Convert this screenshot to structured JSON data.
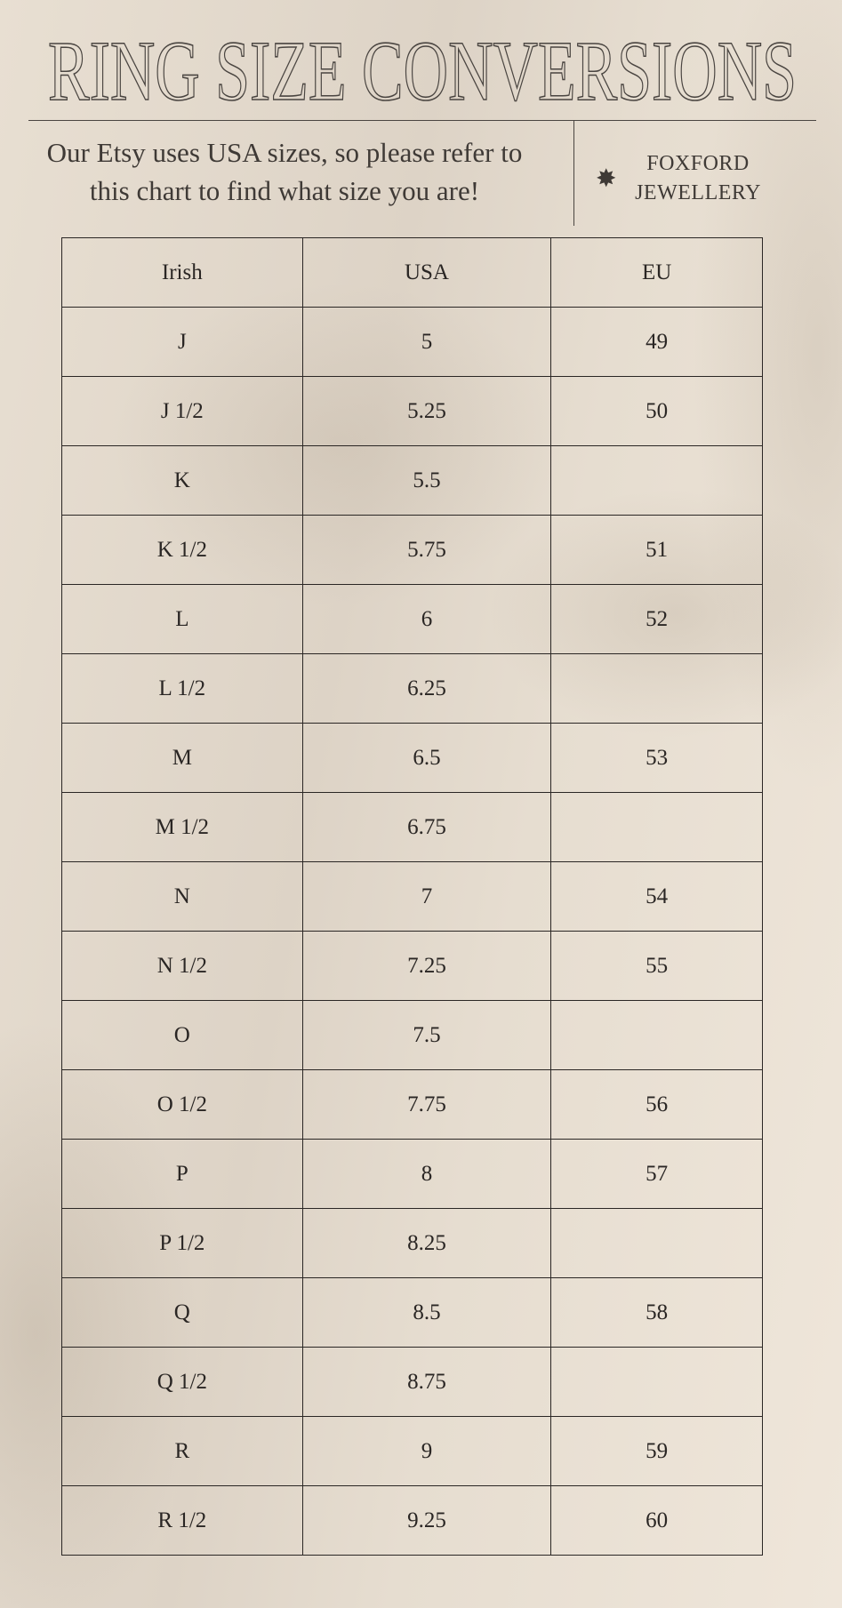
{
  "title": "RING SIZE CONVERSIONS",
  "subtitle": {
    "line1": "Our Etsy uses USA sizes, so please refer to",
    "line2": "this chart to find what size you are!"
  },
  "brand": {
    "line1": "FOXFORD",
    "line2": "JEWELLERY",
    "icon": "star-icon"
  },
  "table": {
    "headers": [
      "Irish",
      "USA",
      "EU"
    ],
    "rows": [
      [
        "J",
        "5",
        "49"
      ],
      [
        "J  1/2",
        "5.25",
        "50"
      ],
      [
        "K",
        "5.5",
        ""
      ],
      [
        "K 1/2",
        "5.75",
        "51"
      ],
      [
        "L",
        "6",
        "52"
      ],
      [
        "L 1/2",
        "6.25",
        ""
      ],
      [
        "M",
        "6.5",
        "53"
      ],
      [
        "M 1/2",
        "6.75",
        ""
      ],
      [
        "N",
        "7",
        "54"
      ],
      [
        "N 1/2",
        "7.25",
        "55"
      ],
      [
        "O",
        "7.5",
        ""
      ],
      [
        "O 1/2",
        "7.75",
        "56"
      ],
      [
        "P",
        "8",
        "57"
      ],
      [
        "P 1/2",
        "8.25",
        ""
      ],
      [
        "Q",
        "8.5",
        "58"
      ],
      [
        "Q 1/2",
        "8.75",
        ""
      ],
      [
        "R",
        "9",
        "59"
      ],
      [
        "R 1/2",
        "9.25",
        "60"
      ]
    ]
  }
}
